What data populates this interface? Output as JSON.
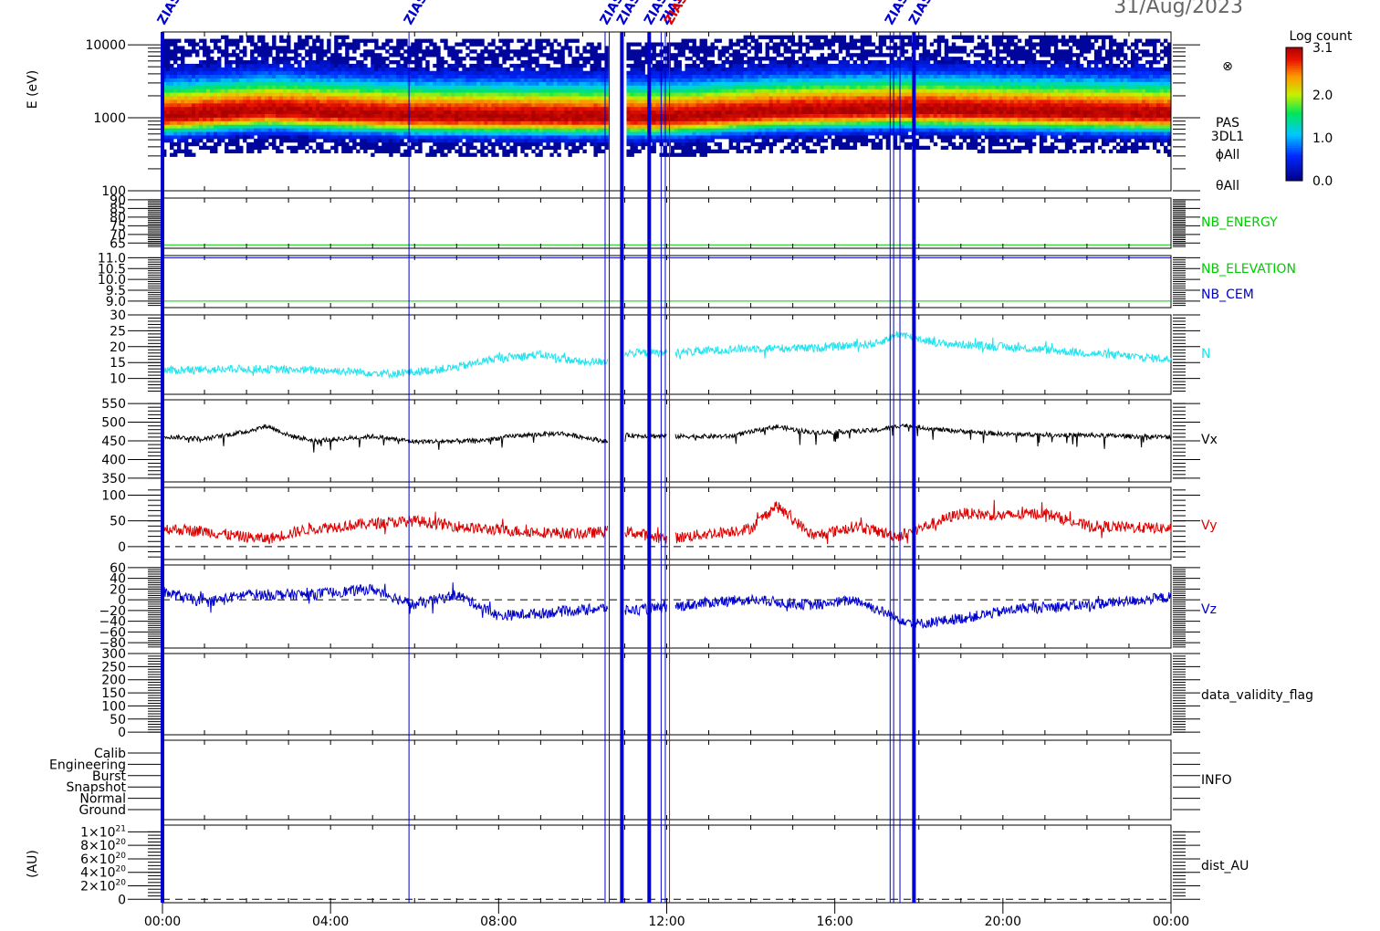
{
  "header": {
    "date": "31/Aug/2023"
  },
  "colorbar": {
    "title": "Log count",
    "ticks": [
      {
        "value": 3.1,
        "label": "3.1"
      },
      {
        "value": 2.0,
        "label": "2.0"
      },
      {
        "value": 1.0,
        "label": "1.0"
      },
      {
        "value": 0.0,
        "label": "0.0"
      }
    ],
    "range": [
      0,
      3.1
    ]
  },
  "time_axis": {
    "ticks": [
      "00:00",
      "04:00",
      "08:00",
      "12:00",
      "16:00",
      "20:00",
      "00:00"
    ],
    "range_hours": [
      0,
      24
    ]
  },
  "markers": {
    "thick": [
      {
        "time": "00:00",
        "label": "ZIAS"
      },
      {
        "time": "10:56",
        "label": "ZIAS"
      },
      {
        "time": "11:35",
        "label": "ZIAS"
      },
      {
        "time": "17:53",
        "label": "ZIAS"
      }
    ],
    "thin": [
      {
        "time": "05:52",
        "label": "ZIAS"
      },
      {
        "time": "10:32",
        "label": "ZIAS"
      },
      {
        "time": "10:38",
        "label": ""
      },
      {
        "time": "11:52",
        "label": ""
      },
      {
        "time": "11:58",
        "label": "ZIAS"
      },
      {
        "time": "17:19",
        "label": "ZIAS"
      },
      {
        "time": "17:24",
        "label": ""
      },
      {
        "time": "17:33",
        "label": ""
      }
    ],
    "red": [
      {
        "time": "12:04",
        "label": "ZIAS"
      }
    ]
  },
  "chart_data": [
    {
      "panel": "energy_spectrogram",
      "type": "heatmap",
      "ylabel": "E (eV)",
      "yscale": "log",
      "ylim": [
        100,
        15000
      ],
      "yticks": [
        100,
        1000,
        10000
      ],
      "right_labels": [
        "⊗",
        "PAS",
        "3DL1",
        "ϕAll",
        "θAll"
      ],
      "data_gaps_hours": [
        [
          10.6,
          11.0
        ]
      ],
      "ridge_energy_ev": [
        {
          "hour": 0,
          "ev": 1050
        },
        {
          "hour": 2.5,
          "ev": 1250
        },
        {
          "hour": 6,
          "ev": 1050
        },
        {
          "hour": 12,
          "ev": 1000
        },
        {
          "hour": 14.6,
          "ev": 1200
        },
        {
          "hour": 17.5,
          "ev": 1300
        },
        {
          "hour": 24,
          "ev": 1100
        }
      ]
    },
    {
      "panel": "nb_energy",
      "type": "line",
      "ylim": [
        62,
        91
      ],
      "yticks": [
        65,
        70,
        75,
        80,
        85,
        90
      ],
      "right_label": "NB_ENERGY",
      "series": [
        {
          "name": "NB_ENERGY",
          "color": "#00cc00",
          "constant": 64
        }
      ]
    },
    {
      "panel": "nb_elevation_cem",
      "type": "line",
      "ylim": [
        8.7,
        11.1
      ],
      "yticks": [
        9.0,
        9.5,
        10.0,
        10.5,
        11.0
      ],
      "right_labels": [
        "NB_ELEVATION",
        "NB_CEM"
      ],
      "series": [
        {
          "name": "NB_ELEVATION",
          "color": "#00cc00",
          "constant": 9.0
        },
        {
          "name": "NB_CEM",
          "color": "#0000cc",
          "constant": 11.0
        }
      ]
    },
    {
      "panel": "density",
      "type": "line",
      "ylim": [
        5,
        30
      ],
      "yticks": [
        10,
        15,
        20,
        25,
        30
      ],
      "right_label": "N",
      "series": [
        {
          "name": "N",
          "color": "#22e3ee",
          "noise": 1.3,
          "spikes": 2.5,
          "anchors": [
            [
              0,
              12.5
            ],
            [
              2,
              13
            ],
            [
              4,
              12.5
            ],
            [
              5.5,
              11.5
            ],
            [
              6,
              12
            ],
            [
              7,
              13.5
            ],
            [
              8,
              16.5
            ],
            [
              9,
              17.5
            ],
            [
              10,
              15
            ],
            [
              10.6,
              15.5
            ],
            [
              11,
              18
            ],
            [
              12,
              18
            ],
            [
              14,
              19.5
            ],
            [
              15.5,
              19.5
            ],
            [
              17,
              21
            ],
            [
              17.5,
              24
            ],
            [
              18.5,
              21
            ],
            [
              20,
              20
            ],
            [
              22,
              18
            ],
            [
              24,
              16
            ]
          ]
        }
      ]
    },
    {
      "panel": "vx",
      "type": "line",
      "ylim": [
        340,
        560
      ],
      "yticks": [
        350,
        400,
        450,
        500,
        550
      ],
      "right_label": "Vx",
      "series": [
        {
          "name": "Vx",
          "color": "#000000",
          "noise": 6,
          "spikes": 35,
          "spike_direction": -1,
          "anchors": [
            [
              0,
              462
            ],
            [
              1,
              455
            ],
            [
              2,
              475
            ],
            [
              2.5,
              490
            ],
            [
              3,
              465
            ],
            [
              3.6,
              450
            ],
            [
              5,
              462
            ],
            [
              6,
              448
            ],
            [
              7.5,
              450
            ],
            [
              8.5,
              465
            ],
            [
              9.5,
              470
            ],
            [
              10.6,
              448
            ],
            [
              11,
              465
            ],
            [
              12,
              462
            ],
            [
              13.5,
              462
            ],
            [
              14.6,
              488
            ],
            [
              15.5,
              472
            ],
            [
              17,
              478
            ],
            [
              17.6,
              492
            ],
            [
              18.5,
              480
            ],
            [
              20,
              468
            ],
            [
              22,
              465
            ],
            [
              24,
              460
            ]
          ]
        }
      ]
    },
    {
      "panel": "vy",
      "type": "line",
      "ylim": [
        -25,
        115
      ],
      "yticks": [
        0,
        50,
        100
      ],
      "right_label": "Vy",
      "zero_line": true,
      "series": [
        {
          "name": "Vy",
          "color": "#dd0000",
          "noise": 11,
          "spikes": 20,
          "anchors": [
            [
              0,
              35
            ],
            [
              1,
              30
            ],
            [
              1.8,
              20
            ],
            [
              2.5,
              15
            ],
            [
              3.5,
              35
            ],
            [
              5,
              45
            ],
            [
              6,
              50
            ],
            [
              7.5,
              35
            ],
            [
              8.5,
              30
            ],
            [
              10,
              25
            ],
            [
              10.6,
              30
            ],
            [
              11,
              30
            ],
            [
              12,
              15
            ],
            [
              13,
              25
            ],
            [
              14,
              35
            ],
            [
              14.6,
              80
            ],
            [
              15.5,
              20
            ],
            [
              16.5,
              40
            ],
            [
              17.5,
              20
            ],
            [
              18,
              35
            ],
            [
              19,
              65
            ],
            [
              20,
              60
            ],
            [
              21,
              65
            ],
            [
              22,
              40
            ],
            [
              24,
              35
            ]
          ]
        }
      ]
    },
    {
      "panel": "vz",
      "type": "line",
      "ylim": [
        -90,
        65
      ],
      "yticks": [
        60,
        40,
        20,
        0,
        -20,
        -40,
        -60,
        -80
      ],
      "right_label": "Vz",
      "zero_line": true,
      "series": [
        {
          "name": "Vz",
          "color": "#0000cc",
          "noise": 10,
          "spikes": 18,
          "anchors": [
            [
              0,
              15
            ],
            [
              1,
              -5
            ],
            [
              2,
              10
            ],
            [
              3.5,
              10
            ],
            [
              5,
              20
            ],
            [
              6,
              -10
            ],
            [
              7,
              10
            ],
            [
              8,
              -30
            ],
            [
              9,
              -25
            ],
            [
              10.6,
              -15
            ],
            [
              11,
              -20
            ],
            [
              12,
              -15
            ],
            [
              13,
              -5
            ],
            [
              14,
              0
            ],
            [
              15.5,
              -10
            ],
            [
              16.5,
              0
            ],
            [
              17.5,
              -35
            ],
            [
              18,
              -45
            ],
            [
              19,
              -35
            ],
            [
              20.5,
              -15
            ],
            [
              22,
              -10
            ],
            [
              24,
              5
            ]
          ]
        }
      ]
    },
    {
      "panel": "data_validity_flag",
      "type": "line",
      "ylim": [
        -10,
        300
      ],
      "yticks": [
        0,
        50,
        100,
        150,
        200,
        250,
        300
      ],
      "right_label": "data_validity_flag",
      "series": []
    },
    {
      "panel": "info",
      "type": "table",
      "right_label": "INFO",
      "categories": [
        "Calib",
        "Engineering",
        "Burst",
        "Snapshot",
        "Normal",
        "Ground"
      ]
    },
    {
      "panel": "dist_au",
      "type": "line",
      "ylabel": "(AU)",
      "ylim": [
        -0.05,
        1.1
      ],
      "yticks": [
        {
          "value": 1.0,
          "base": "1×10",
          "exp": "21"
        },
        {
          "value": 0.8,
          "base": "8×10",
          "exp": "20"
        },
        {
          "value": 0.6,
          "base": "6×10",
          "exp": "20"
        },
        {
          "value": 0.4,
          "base": "4×10",
          "exp": "20"
        },
        {
          "value": 0.2,
          "base": "2×10",
          "exp": "20"
        },
        {
          "value": 0.0,
          "base": "0",
          "exp": ""
        }
      ],
      "right_label": "dist_AU",
      "zero_line": true,
      "series": []
    }
  ]
}
